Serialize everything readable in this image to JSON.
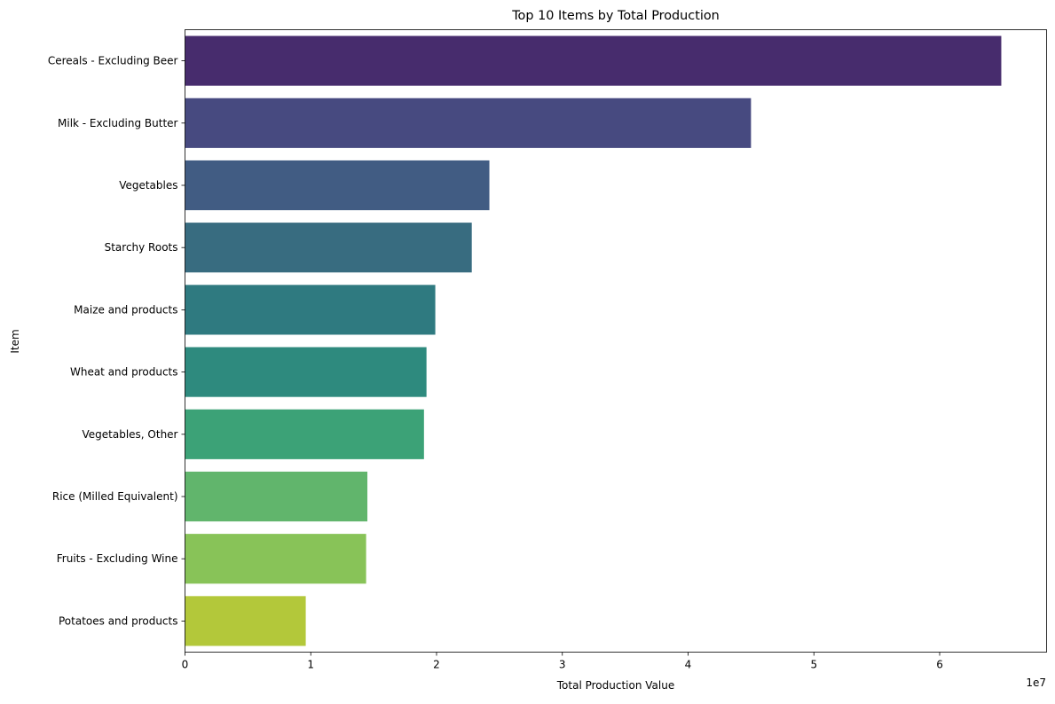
{
  "chart_data": {
    "type": "bar",
    "orientation": "horizontal",
    "title": "Top 10 Items by Total Production",
    "xlabel": "Total Production Value",
    "ylabel": "Item",
    "x_offset_text": "1e7",
    "x_scale": 10000000,
    "xlim": [
      0,
      6.85
    ],
    "x_ticks": [
      "0",
      "1",
      "2",
      "3",
      "4",
      "5",
      "6"
    ],
    "grid": false,
    "categories": [
      "Cereals - Excluding Beer",
      "Milk - Excluding Butter",
      "Vegetables",
      "Starchy Roots",
      "Maize and products",
      "Wheat and products",
      "Vegetables, Other",
      "Rice (Milled Equivalent)",
      "Fruits - Excluding Wine",
      "Potatoes and products"
    ],
    "values": [
      6.49,
      4.5,
      2.42,
      2.28,
      1.99,
      1.92,
      1.9,
      1.45,
      1.44,
      0.96
    ],
    "colors": [
      "#472c6d",
      "#474a80",
      "#415c83",
      "#386c80",
      "#2f7a80",
      "#2e8a7e",
      "#3ca277",
      "#61b56c",
      "#88c358",
      "#b3c83a"
    ]
  }
}
